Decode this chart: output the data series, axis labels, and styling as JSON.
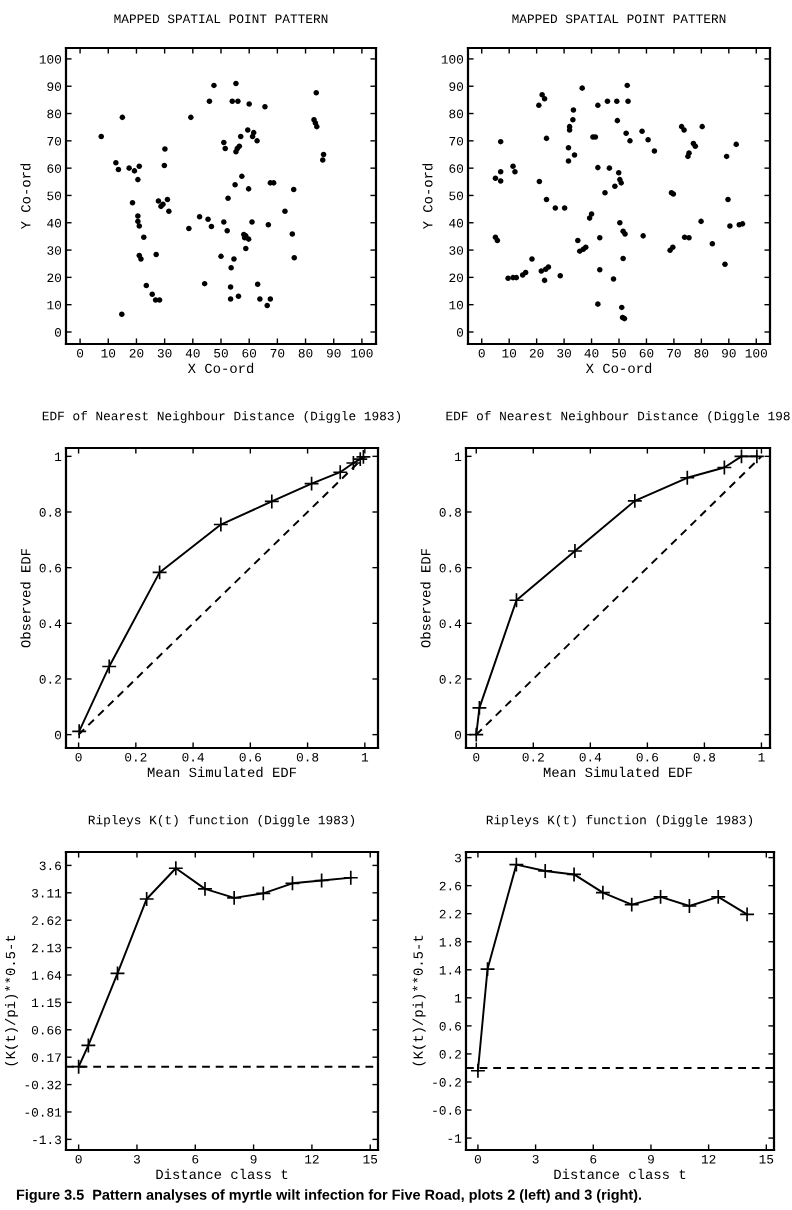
{
  "chart_data": [
    {
      "type": "scatter",
      "title": "MAPPED SPATIAL POINT PATTERN",
      "xlabel": "X Co-ord",
      "ylabel": "Y Co-ord",
      "marker": "circle",
      "xlim": [
        -5,
        105
      ],
      "ylim": [
        -4.4,
        104
      ],
      "xticks": [
        0,
        10,
        20,
        30,
        40,
        50,
        60,
        70,
        80,
        90,
        100
      ],
      "yticks": [
        0,
        10,
        20,
        30,
        40,
        50,
        60,
        70,
        80,
        90,
        100
      ],
      "series": [
        {
          "color": "#000000",
          "x": [
            14.8,
            15,
            7.5,
            12.7,
            13.6,
            17.4,
            19.3,
            20.5,
            21,
            18.6,
            20.5,
            20.5,
            21,
            22.6,
            21,
            21.6,
            23.5,
            25.6,
            26.8,
            28.2,
            27,
            27.8,
            28.7,
            29.4,
            29.9,
            30.1,
            31.5,
            31,
            39.3,
            38.6,
            42.4,
            44.2,
            45.9,
            47.5,
            45.4,
            46.6,
            50,
            51,
            51.5,
            51,
            52.2,
            52.5,
            53.6,
            53.4,
            54.6,
            55.3,
            54,
            56,
            55,
            55.3,
            56.5,
            55.8,
            57,
            59.5,
            61.6,
            58.1,
            58.8,
            58.4,
            59.8,
            57.4,
            58.8,
            59.8,
            61,
            60,
            61.2,
            62.8,
            56.2,
            53.4,
            63,
            63.8,
            65.6,
            66.4,
            67.5,
            67.5,
            68.7,
            66.8,
            72.7,
            75.8,
            75.3,
            76,
            83,
            83.5,
            84,
            83.8,
            86.4,
            86.1
          ],
          "values": [
            6.5,
            78.6,
            71.6,
            62,
            59.5,
            60,
            59,
            55.8,
            60.7,
            47.3,
            42.5,
            40.5,
            38.8,
            34.7,
            28,
            26.7,
            17,
            13.8,
            11.7,
            11.7,
            28.4,
            48,
            46,
            46.8,
            61,
            67,
            44.2,
            48.5,
            78.6,
            37.9,
            42.2,
            17.7,
            84.5,
            90.3,
            41.3,
            38.6,
            27.7,
            69.4,
            67.2,
            40.3,
            37.1,
            49,
            23.5,
            16.5,
            26.7,
            91,
            84.5,
            84.5,
            53.9,
            66,
            68,
            67.2,
            71.6,
            74,
            73,
            35.7,
            35.2,
            34.5,
            34,
            57,
            30.6,
            52.4,
            40.3,
            83.5,
            71.6,
            70,
            13.1,
            12.1,
            17.5,
            12.1,
            82.5,
            9.7,
            12.1,
            54.6,
            54.6,
            39.3,
            44.2,
            52.2,
            35.9,
            27.2,
            77.7,
            76.5,
            75.2,
            87.6,
            65,
            63
          ]
        }
      ]
    },
    {
      "type": "scatter",
      "title": "MAPPED SPATIAL POINT PATTERN",
      "xlabel": "X Co-ord",
      "ylabel": "Y Co-ord",
      "marker": "circle",
      "xlim": [
        -5,
        105
      ],
      "ylim": [
        -4.4,
        104
      ],
      "xticks": [
        0,
        10,
        20,
        30,
        40,
        50,
        60,
        70,
        80,
        90,
        100
      ],
      "yticks": [
        0,
        10,
        20,
        30,
        40,
        50,
        60,
        70,
        80,
        90,
        100
      ],
      "series": [
        {
          "color": "#000000",
          "x": [
            5,
            5.7,
            5,
            6.9,
            6.9,
            6.9,
            11.4,
            12.1,
            9.6,
            11.4,
            12.6,
            14.9,
            16,
            18.3,
            21,
            20.8,
            22,
            22.9,
            23.6,
            23.6,
            21.7,
            23.3,
            24.3,
            22.9,
            26.8,
            28.6,
            30.2,
            31.6,
            31.6,
            32,
            33.2,
            32,
            33.4,
            33.8,
            36.6,
            35,
            35.7,
            37,
            37.9,
            39.3,
            40,
            40.5,
            41.4,
            42.3,
            42.3,
            43,
            42.3,
            43,
            44.9,
            45.8,
            46.5,
            48.5,
            48,
            49.2,
            49.4,
            49.9,
            50.3,
            50.8,
            50.3,
            51.5,
            52.2,
            51.5,
            51,
            52,
            51.3,
            52.6,
            53,
            53.3,
            54,
            58.4,
            58.8,
            60.6,
            62.9,
            69.1,
            69.8,
            68.6,
            69.6,
            72.8,
            73.7,
            73.9,
            75.5,
            75.1,
            75.5,
            77.1,
            77.8,
            80.3,
            79.9,
            84,
            88.6,
            89.2,
            89.7,
            90.4,
            92.7,
            93.8,
            95
          ],
          "values": [
            34.7,
            33.5,
            56.3,
            55.3,
            58.7,
            69.7,
            60.7,
            58.7,
            19.7,
            19.9,
            19.9,
            20.9,
            21.8,
            26.7,
            55.1,
            83,
            86.9,
            85.4,
            70.9,
            48.5,
            22.3,
            23,
            23.8,
            18.9,
            45.4,
            20.6,
            45.4,
            62.6,
            67.5,
            75.2,
            77.7,
            74,
            81.3,
            64.8,
            89.3,
            33.5,
            29.6,
            30.3,
            31,
            41.7,
            43.2,
            71.4,
            71.4,
            83,
            60.2,
            34.5,
            10.2,
            22.8,
            51,
            84.5,
            60,
            53.4,
            19.4,
            84.5,
            77.4,
            58.3,
            55.8,
            54.6,
            40,
            36.9,
            35.9,
            26.9,
            9,
            4.9,
            5.3,
            72.8,
            90.3,
            84.5,
            70,
            73.5,
            35.2,
            70.4,
            66.3,
            51,
            50.5,
            29.9,
            31,
            75.2,
            74,
            34.7,
            34.5,
            64.3,
            65.5,
            69,
            68,
            75.2,
            40.5,
            32.3,
            24.8,
            64.3,
            48.5,
            38.8,
            68.7,
            39.3,
            39.6
          ]
        }
      ]
    },
    {
      "type": "line",
      "title": "EDF of Nearest Neighbour Distance (Diggle 1983)",
      "xlabel": "Mean Simulated EDF",
      "ylabel": "Observed EDF",
      "xlim": [
        -0.044,
        1.046
      ],
      "ylim": [
        -0.048,
        1.03
      ],
      "xticks": [
        0,
        0.2,
        0.4,
        0.6,
        0.8,
        1
      ],
      "yticks": [
        0,
        0.2,
        0.4,
        0.6,
        0.8,
        1
      ],
      "series": [
        {
          "color": "#000000",
          "marker": "cross",
          "line_style": "solid",
          "x": [
            0.002,
            0.107,
            0.283,
            0.497,
            0.675,
            0.814,
            0.914,
            0.96,
            0.984,
            0.995
          ],
          "values": [
            0.012,
            0.245,
            0.583,
            0.755,
            0.838,
            0.902,
            0.943,
            0.976,
            0.99,
            0.998
          ]
        },
        {
          "color": "#000000",
          "marker": "none",
          "line_style": "dashed",
          "x": [
            0,
            1
          ],
          "values": [
            0,
            1
          ]
        }
      ]
    },
    {
      "type": "line",
      "title": "EDF of Nearest Neighbour Distance (Diggle 198",
      "xlabel": "Mean Simulated EDF",
      "ylabel": "Observed EDF",
      "xlim": [
        -0.036,
        1.03
      ],
      "ylim": [
        -0.048,
        1.03
      ],
      "xticks": [
        0,
        0.2,
        0.4,
        0.6,
        0.8,
        1
      ],
      "yticks": [
        0,
        0.2,
        0.4,
        0.6,
        0.8,
        1
      ],
      "series": [
        {
          "color": "#000000",
          "marker": "cross",
          "line_style": "solid",
          "x": [
            0,
            0.011,
            0.141,
            0.346,
            0.556,
            0.74,
            0.87,
            0.93,
            0.984
          ],
          "values": [
            0,
            0.096,
            0.483,
            0.66,
            0.84,
            0.923,
            0.96,
            1.0,
            1.0
          ]
        },
        {
          "color": "#000000",
          "marker": "none",
          "line_style": "dashed",
          "x": [
            0,
            1
          ],
          "values": [
            0,
            1
          ]
        }
      ]
    },
    {
      "type": "line",
      "title": "Ripleys K(t) function (Diggle 1983)",
      "xlabel": "Distance class t",
      "ylabel": "(K(t)/pi)**0.5-t",
      "xlim": [
        -0.65,
        15.4
      ],
      "ylim": [
        -1.49,
        3.84
      ],
      "xticks": [
        0,
        3,
        6,
        9,
        12,
        15
      ],
      "yticks": [
        -1.3,
        -0.81,
        -0.32,
        0.17,
        0.66,
        1.15,
        1.64,
        2.13,
        2.62,
        3.11,
        3.6
      ],
      "ref_lines": [
        {
          "axis": "y",
          "value": 0,
          "label": null,
          "color": "#000000",
          "line_style": "dashed"
        }
      ],
      "annotations": [
        "Figure 3.5  Pattern analyses of myrtle wilt infection for Five Road, plots 2 (left) and 3 (right)."
      ],
      "series": [
        {
          "color": "#000000",
          "marker": "cross",
          "line_style": "solid",
          "x": [
            0,
            0.5,
            2,
            3.5,
            5,
            6.5,
            8,
            9.5,
            11,
            12.5,
            14
          ],
          "values": [
            0.0,
            0.38,
            1.67,
            3.0,
            3.55,
            3.18,
            3.02,
            3.1,
            3.28,
            3.33,
            3.38
          ]
        }
      ]
    },
    {
      "type": "line",
      "title": "Ripleys K(t) function (Diggle 1983)",
      "xlabel": "Distance class t",
      "ylabel": "(K(t)/pi)**0.5-t",
      "xlim": [
        -0.62,
        15.4
      ],
      "ylim": [
        -1.17,
        3.08
      ],
      "xticks": [
        0,
        3,
        6,
        9,
        12,
        15
      ],
      "yticks": [
        -1,
        -0.6,
        -0.2,
        0.2,
        0.6,
        1,
        1.4,
        1.8,
        2.2,
        2.6,
        3
      ],
      "ref_lines": [
        {
          "axis": "y",
          "value": 0,
          "label": null,
          "color": "#000000",
          "line_style": "dashed"
        }
      ],
      "series": [
        {
          "color": "#000000",
          "marker": "cross",
          "line_style": "solid",
          "x": [
            0,
            0.5,
            2,
            3.5,
            5,
            6.5,
            8,
            9.5,
            11,
            12.5,
            14
          ],
          "values": [
            -0.04,
            1.41,
            2.9,
            2.81,
            2.76,
            2.5,
            2.33,
            2.44,
            2.31,
            2.44,
            2.19
          ]
        }
      ]
    }
  ]
}
